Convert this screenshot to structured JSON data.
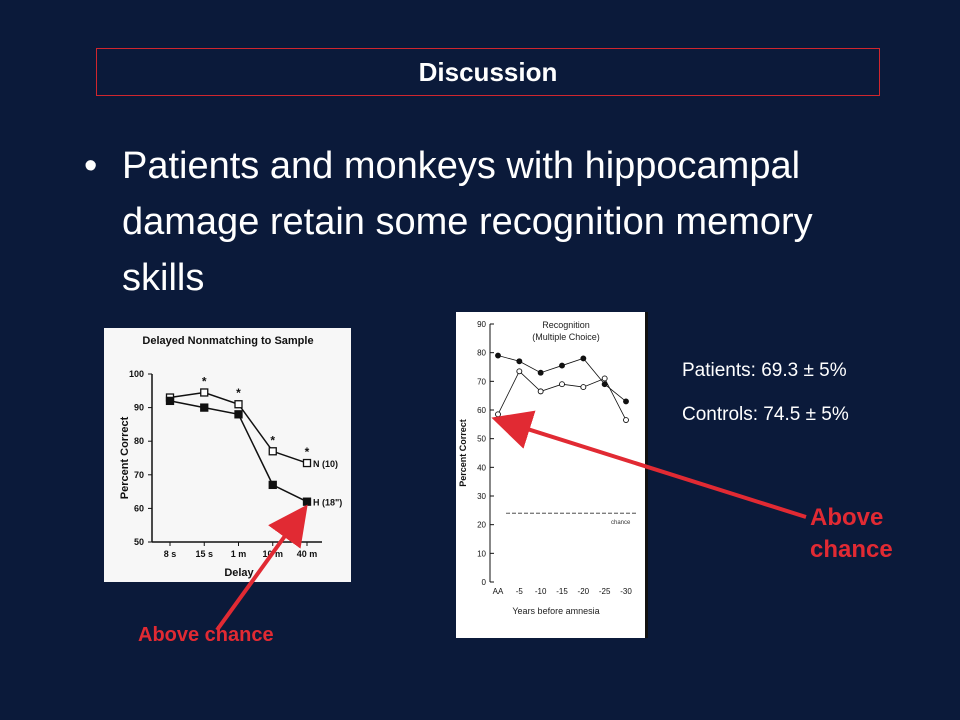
{
  "slide": {
    "title": "Discussion",
    "bullet": "Patients and monkeys with hippocampal damage retain some recognition memory skills",
    "stats": {
      "patients": "Patients: 69.3 ± 5%",
      "controls": "Controls: 74.5 ± 5%"
    },
    "callouts": {
      "right": "Above chance",
      "left": "Above chance"
    },
    "colors": {
      "background": "#0b1a3a",
      "accent": "#d0262e",
      "text": "#ffffff"
    }
  },
  "chart_data": [
    {
      "type": "line",
      "title": "Delayed Nonmatching to Sample",
      "xlabel": "Delay",
      "ylabel": "Percent Correct",
      "categories": [
        "8 s",
        "15 s",
        "1 m",
        "10 m",
        "40 m"
      ],
      "ylim": [
        50,
        100
      ],
      "yticks": [
        50,
        60,
        70,
        80,
        90,
        100
      ],
      "series": [
        {
          "name": "N (10)",
          "marker": "open-square",
          "values": [
            93,
            94.5,
            91,
            77,
            73.5
          ]
        },
        {
          "name": "H (18\")",
          "marker": "filled-square",
          "values": [
            92,
            90,
            88,
            67,
            62
          ]
        }
      ],
      "annotations": [
        "*",
        "*",
        "*",
        "*"
      ]
    },
    {
      "type": "line",
      "title": "Recognition",
      "subtitle": "(Multiple Choice)",
      "xlabel": "Years before amnesia",
      "ylabel": "Percent Correct",
      "categories": [
        "AA",
        "-5",
        "-10",
        "-15",
        "-20",
        "-25",
        "-30"
      ],
      "ylim": [
        0,
        90
      ],
      "yticks": [
        0,
        10,
        20,
        30,
        40,
        50,
        60,
        70,
        80,
        90
      ],
      "chance_label": "chance",
      "chance_value": 24,
      "series": [
        {
          "marker": "filled-circle",
          "values": [
            79,
            77,
            73,
            75.5,
            78,
            69,
            63
          ]
        },
        {
          "marker": "open-circle",
          "values": [
            58.5,
            73.5,
            66.5,
            69,
            68,
            71,
            56.5
          ]
        }
      ]
    }
  ]
}
